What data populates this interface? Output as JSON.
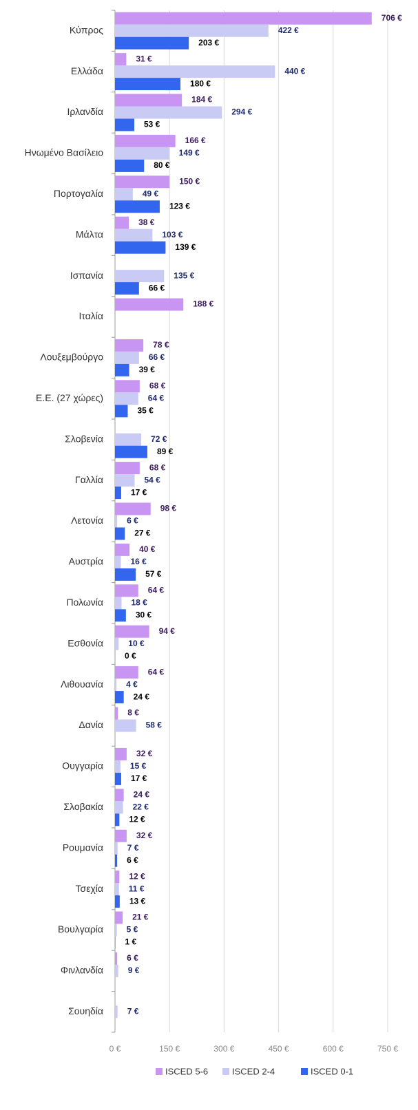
{
  "chart_data": {
    "type": "hbar",
    "categories": [
      "Κύπρος",
      "Ελλάδα",
      "Ιρλανδία",
      "Ηνωμένο Βασίλειο",
      "Πορτογαλία",
      "Μάλτα",
      "Ισπανία",
      "Ιταλία",
      "Λουξεμβούργο",
      "Ε.Ε. (27 χώρες)",
      "Σλοβενία",
      "Γαλλία",
      "Λετονία",
      "Αυστρία",
      "Πολωνία",
      "Εσθονία",
      "Λιθουανία",
      "Δανία",
      "Ουγγαρία",
      "Σλοβακία",
      "Ρουμανία",
      "Τσεχία",
      "Βουλγαρία",
      "Φινλανδία",
      "Σουηδία"
    ],
    "series": [
      {
        "name": "ISCED 5-6",
        "color": "#c896f2",
        "label_color": "#3b1a5e",
        "values": [
          706,
          31,
          184,
          166,
          150,
          38,
          null,
          188,
          78,
          68,
          null,
          68,
          98,
          40,
          64,
          94,
          64,
          8,
          32,
          24,
          32,
          12,
          21,
          6,
          null
        ],
        "value_labels": [
          "706 €",
          "31 €",
          "184 €",
          "166 €",
          "150 €",
          "38 €",
          null,
          "188 €",
          "78 €",
          "68 €",
          null,
          "68 €",
          "98 €",
          "40 €",
          "64 €",
          "94 €",
          "64 €",
          "8 €",
          "32 €",
          "24 €",
          "32 €",
          "12 €",
          "21 €",
          "6 €",
          null
        ]
      },
      {
        "name": "ISCED 2-4",
        "color": "#c9cbf5",
        "label_color": "#1f2a6e",
        "values": [
          422,
          440,
          294,
          149,
          49,
          103,
          135,
          null,
          66,
          64,
          72,
          54,
          6,
          16,
          18,
          10,
          4,
          58,
          15,
          22,
          7,
          11,
          5,
          9,
          7
        ],
        "value_labels": [
          "422 €",
          "440 €",
          "294 €",
          "149 €",
          "49 €",
          "103 €",
          "135 €",
          null,
          "66 €",
          "64 €",
          "72 €",
          "54 €",
          "6 €",
          "16 €",
          "18 €",
          "10 €",
          "4 €",
          "58 €",
          "15 €",
          "22 €",
          "7 €",
          "11 €",
          "5 €",
          "9 €",
          "7 €"
        ]
      },
      {
        "name": "ISCED 0-1",
        "color": "#3366ee",
        "label_color": "#000000",
        "values": [
          203,
          180,
          53,
          80,
          123,
          139,
          66,
          null,
          39,
          35,
          89,
          17,
          27,
          57,
          30,
          0,
          24,
          null,
          17,
          12,
          6,
          13,
          1,
          null,
          null
        ],
        "value_labels": [
          "203 €",
          "180 €",
          "53 €",
          "80 €",
          "123 €",
          "139 €",
          "66 €",
          null,
          "39 €",
          "35 €",
          "89 €",
          "17 €",
          "27 €",
          "57 €",
          "30 €",
          "0 €",
          "24 €",
          null,
          "17 €",
          "12 €",
          "6 €",
          "13 €",
          "1 €",
          null,
          null
        ]
      }
    ],
    "xlim": [
      0,
      750
    ],
    "xticks": [
      {
        "value": 0,
        "label": "0 €"
      },
      {
        "value": 150,
        "label": "150 €"
      },
      {
        "value": 300,
        "label": "300 €"
      },
      {
        "value": 450,
        "label": "450 €"
      },
      {
        "value": 600,
        "label": "600 €"
      },
      {
        "value": 750,
        "label": "750 €"
      }
    ],
    "grid": true,
    "legend": "bottom"
  }
}
